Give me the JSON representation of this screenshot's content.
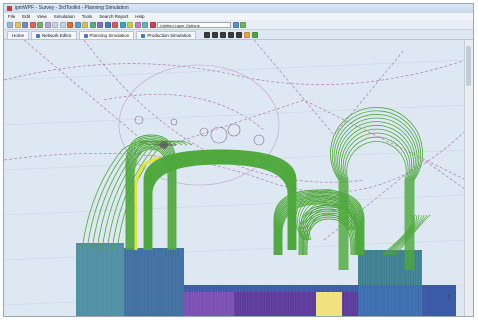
{
  "window": {
    "title": "ipmWPF - Survey - 3rdToolkit - Planning Simulation",
    "menu": [
      "File",
      "Edit",
      "View",
      "Simulation",
      "Tools",
      "Search Report",
      "Help"
    ],
    "active_layer_placeholder": "Untitled Layer Options"
  },
  "tabs": [
    {
      "label": "Home"
    },
    {
      "label": "Network Editor"
    },
    {
      "label": "Planning Simulation"
    },
    {
      "label": "Production Simulation"
    }
  ],
  "colors": {
    "map_bg": "#dde8f3",
    "route_green": "#4ea83b",
    "route_yellow": "#e4e33a",
    "block_teal": "#4f8fa3",
    "block_blue": "#3b5aa8",
    "block_purple": "#5b3a9c",
    "block_violet": "#7a4fb3"
  },
  "icons": [
    "north-arrow-icon",
    "vessel-icon"
  ]
}
